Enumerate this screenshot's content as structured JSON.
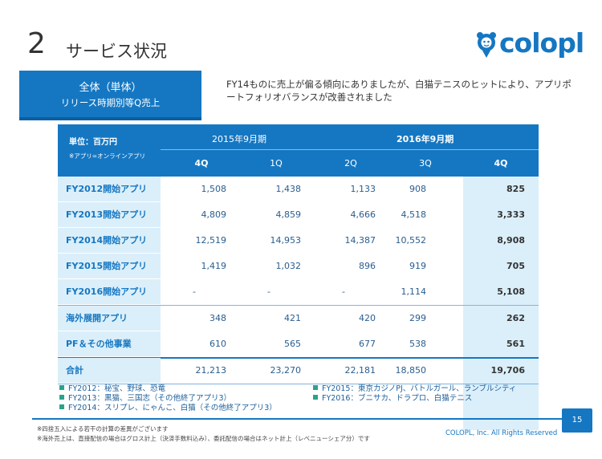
{
  "header": {
    "number": "2",
    "title": "サービス状況",
    "logo_text": "colopl"
  },
  "label_box": {
    "line1": "全体（単体）",
    "line2": "リリース時期別等Q売上"
  },
  "description": "FY14ものに売上が偏る傾向にありましたが、白猫テニスのヒットにより、アプリポートフォリオバランスが改善されました",
  "table": {
    "unit": "単位：百万円",
    "unit_note": "※アプリ=オンラインアプリ",
    "period1": "2015年9月期",
    "period2": "2016年9月期",
    "quarters": [
      "4Q",
      "1Q",
      "2Q",
      "3Q",
      "4Q"
    ],
    "rows": [
      {
        "label": "FY2012開始アプリ",
        "values": [
          "1,508",
          "1,438",
          "1,133",
          "908",
          "825"
        ]
      },
      {
        "label": "FY2013開始アプリ",
        "values": [
          "4,809",
          "4,859",
          "4,666",
          "4,518",
          "3,333"
        ]
      },
      {
        "label": "FY2014開始アプリ",
        "values": [
          "12,519",
          "14,953",
          "14,387",
          "10,552",
          "8,908"
        ]
      },
      {
        "label": "FY2015開始アプリ",
        "values": [
          "1,419",
          "1,032",
          "896",
          "919",
          "705"
        ]
      },
      {
        "label": "FY2016開始アプリ",
        "values": [
          "-",
          "-",
          "-",
          "1,114",
          "5,108"
        ]
      },
      {
        "label": "海外展開アプリ",
        "values": [
          "348",
          "421",
          "420",
          "299",
          "262"
        ]
      },
      {
        "label": "PF＆その他事業",
        "values": [
          "610",
          "565",
          "677",
          "538",
          "561"
        ]
      },
      {
        "label": "合計",
        "values": [
          "21,213",
          "23,270",
          "22,181",
          "18,850",
          "19,706"
        ]
      }
    ]
  },
  "legend": {
    "left": [
      "FY2012：秘宝、野球、恐竜",
      "FY2013：黒猫、三国志（その他終了アプリ3）",
      "FY2014：スリプレ、にゃんこ、白猫（その他終了アプリ3）"
    ],
    "right": [
      "FY2015：東京カジノPJ、バトルガール、ランブルシティ",
      "FY2016：ブニサカ、ドラプロ、白猫テニス"
    ]
  },
  "footer": {
    "note1": "※四捨五入による若干の計算の差異がございます",
    "note2": "※海外売上は、直接配信の場合はグロス計上（決済手数料込み）、委託配信の場合はネット計上（レベニューシェア分）です",
    "copyright": "COLOPL, Inc. All Rights Reserved",
    "page": "15"
  },
  "colors": {
    "brand_blue": "#1577c2",
    "light_blue": "#dbeffa",
    "legend_bullet": "#2aa38a"
  }
}
